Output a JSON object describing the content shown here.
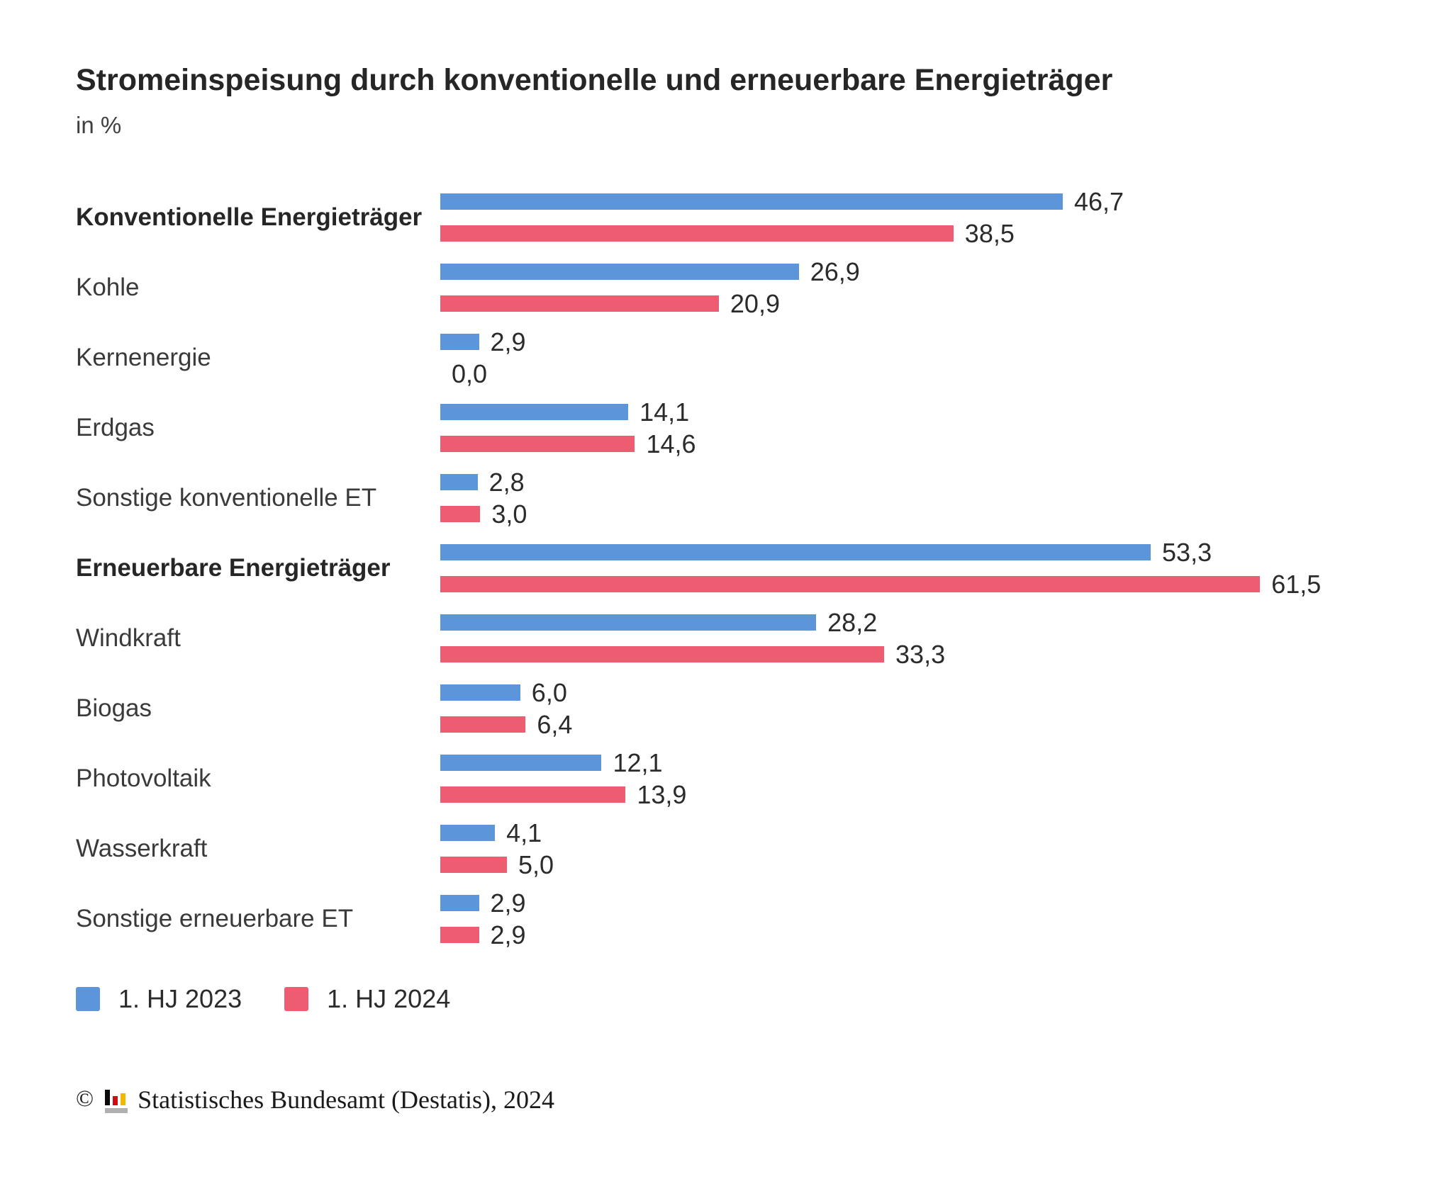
{
  "header": {
    "title": "Stromeinspeisung durch konventionelle und erneuerbare Energieträger",
    "subtitle": "in %"
  },
  "chart_data": {
    "type": "bar",
    "orientation": "horizontal",
    "title": "Stromeinspeisung durch konventionelle und erneuerbare Energieträger",
    "unit_label": "in %",
    "xlim": [
      0,
      65
    ],
    "grid": false,
    "legend_position": "bottom",
    "series": [
      {
        "name": "1. HJ 2023",
        "color": "#5C95DA"
      },
      {
        "name": "1. HJ 2024",
        "color": "#EE5C72"
      }
    ],
    "categories": [
      {
        "label": "Konventionelle Energieträger",
        "bold": true,
        "values": [
          46.7,
          38.5
        ],
        "labels": [
          "46,7",
          "38,5"
        ]
      },
      {
        "label": "Kohle",
        "bold": false,
        "values": [
          26.9,
          20.9
        ],
        "labels": [
          "26,9",
          "20,9"
        ]
      },
      {
        "label": "Kernenergie",
        "bold": false,
        "values": [
          2.9,
          0.0
        ],
        "labels": [
          "2,9",
          "0,0"
        ]
      },
      {
        "label": "Erdgas",
        "bold": false,
        "values": [
          14.1,
          14.6
        ],
        "labels": [
          "14,1",
          "14,6"
        ]
      },
      {
        "label": "Sonstige konventionelle ET",
        "bold": false,
        "values": [
          2.8,
          3.0
        ],
        "labels": [
          "2,8",
          "3,0"
        ]
      },
      {
        "label": "Erneuerbare Energieträger",
        "bold": true,
        "values": [
          53.3,
          61.5
        ],
        "labels": [
          "53,3",
          "61,5"
        ]
      },
      {
        "label": "Windkraft",
        "bold": false,
        "values": [
          28.2,
          33.3
        ],
        "labels": [
          "28,2",
          "33,3"
        ]
      },
      {
        "label": "Biogas",
        "bold": false,
        "values": [
          6.0,
          6.4
        ],
        "labels": [
          "6,0",
          "6,4"
        ]
      },
      {
        "label": "Photovoltaik",
        "bold": false,
        "values": [
          12.1,
          13.9
        ],
        "labels": [
          "12,1",
          "13,9"
        ]
      },
      {
        "label": "Wasserkraft",
        "bold": false,
        "values": [
          4.1,
          5.0
        ],
        "labels": [
          "4,1",
          "5,0"
        ]
      },
      {
        "label": "Sonstige erneuerbare ET",
        "bold": false,
        "values": [
          2.9,
          2.9
        ],
        "labels": [
          "2,9",
          "2,9"
        ]
      }
    ]
  },
  "legend": {
    "items": [
      {
        "label": "1. HJ 2023",
        "color": "#5C95DA"
      },
      {
        "label": "1. HJ 2024",
        "color": "#EE5C72"
      }
    ]
  },
  "footer": {
    "copyright_symbol": "©",
    "source_text": "Statistisches Bundesamt (Destatis), 2024",
    "logo_icon": "destatis-bar-chart-icon",
    "logo_colors": {
      "black": "#0A0A0A",
      "red": "#D40A10",
      "gold": "#F2B700",
      "gray": "#B0B0B0"
    }
  }
}
